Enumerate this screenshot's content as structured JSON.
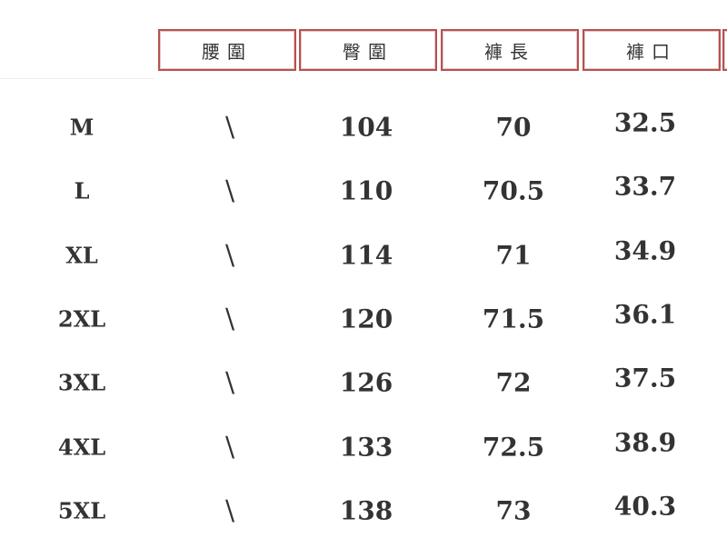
{
  "headers": [
    "腰圍",
    "臀圍",
    "褲長",
    "褲口"
  ],
  "rows": [
    {
      "size": "M",
      "waist": "\\",
      "hip": "104",
      "length": "70",
      "cuff": "32.5",
      "next": "1"
    },
    {
      "size": "L",
      "waist": "\\",
      "hip": "110",
      "length": "70.5",
      "cuff": "33.7",
      "next": "1"
    },
    {
      "size": "XL",
      "waist": "\\",
      "hip": "114",
      "length": "71",
      "cuff": "34.9",
      "next": "1"
    },
    {
      "size": "2XL",
      "waist": "\\",
      "hip": "120",
      "length": "71.5",
      "cuff": "36.1",
      "next": "1"
    },
    {
      "size": "3XL",
      "waist": "\\",
      "hip": "126",
      "length": "72",
      "cuff": "37.5",
      "next": "1"
    },
    {
      "size": "4XL",
      "waist": "\\",
      "hip": "133",
      "length": "72.5",
      "cuff": "38.9",
      "next": "1"
    },
    {
      "size": "5XL",
      "waist": "\\",
      "hip": "138",
      "length": "73",
      "cuff": "40.3",
      "next": "2"
    }
  ],
  "colors": {
    "header_border": "#b5524f",
    "text": "#333333"
  }
}
